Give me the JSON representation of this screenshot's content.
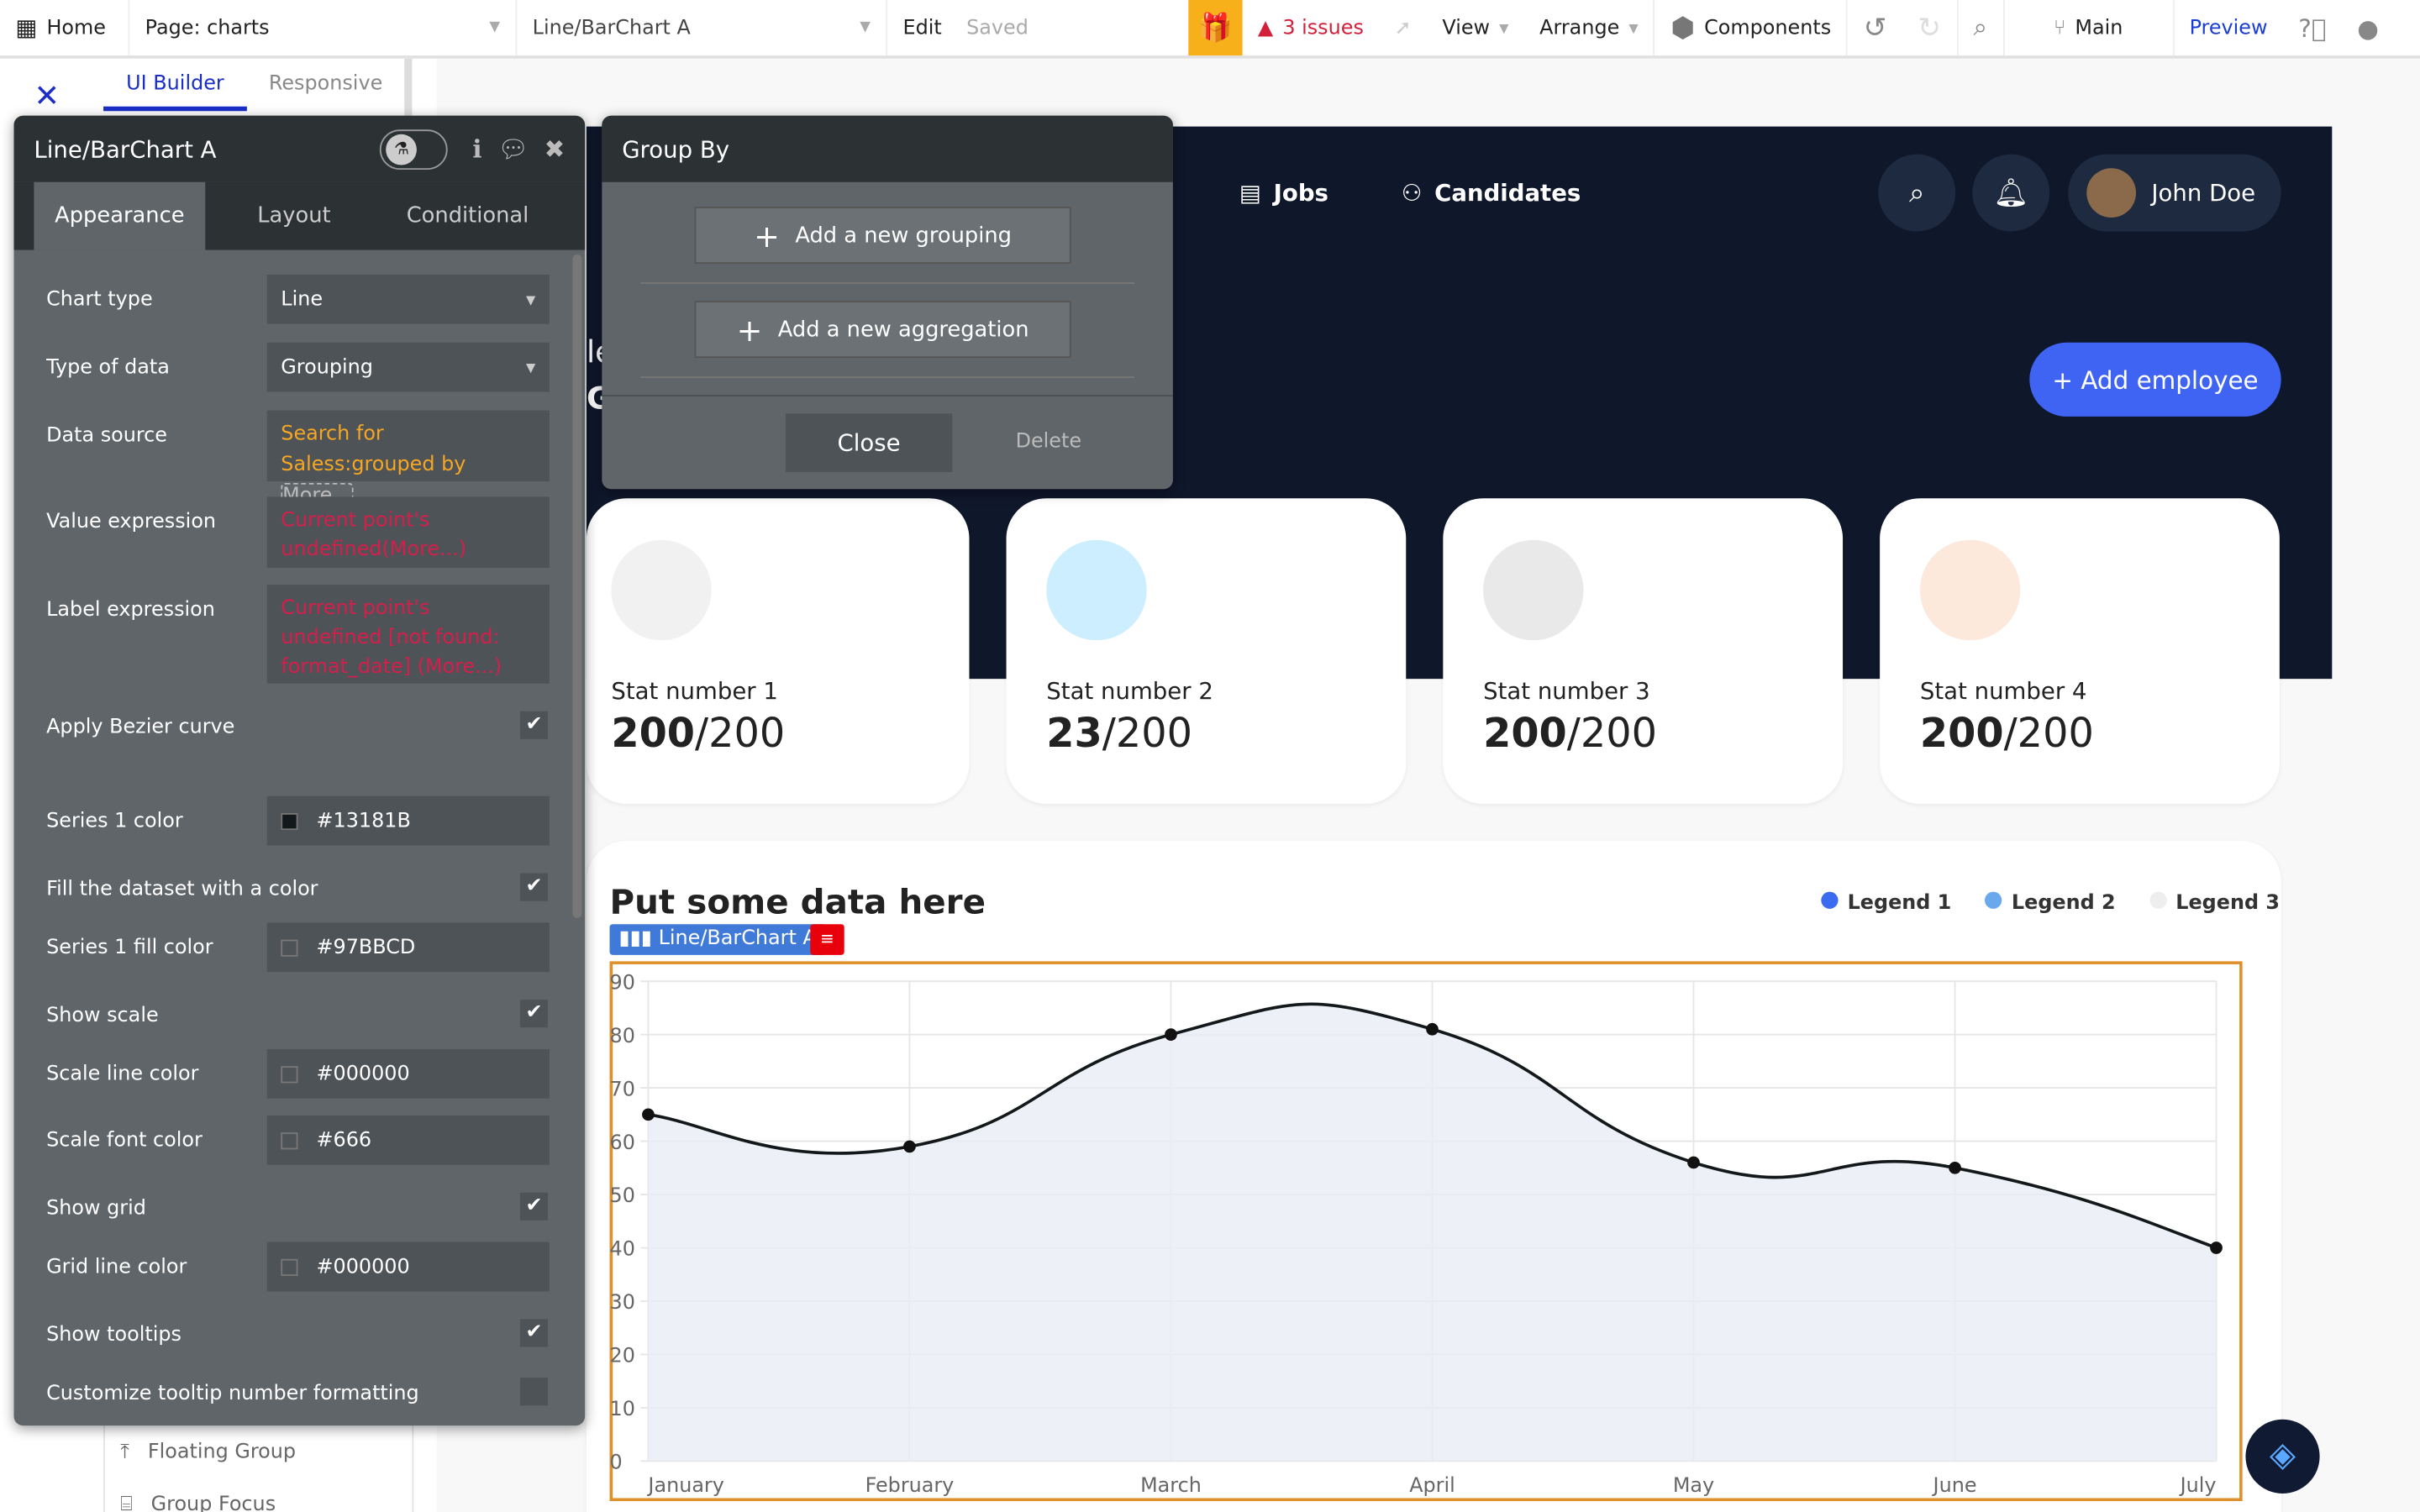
{
  "topbar": {
    "home": "Home",
    "page": "Page: charts",
    "element": "Line/BarChart A",
    "edit": "Edit",
    "saved": "Saved",
    "issues": "3 issues",
    "view": "View",
    "arrange": "Arrange",
    "components": "Components",
    "branch": "Main",
    "preview": "Preview"
  },
  "left_tabs": {
    "ui_builder": "UI Builder",
    "responsive": "Responsive"
  },
  "element_list": [
    "Floating Group",
    "Group Focus"
  ],
  "property_panel": {
    "title": "Line/BarChart A",
    "tabs": [
      "Appearance",
      "Layout",
      "Conditional"
    ],
    "rows": {
      "chart_type": {
        "label": "Chart type",
        "value": "Line"
      },
      "type_of_data": {
        "label": "Type of data",
        "value": "Grouping"
      },
      "data_source": {
        "label": "Data source",
        "value": "Search for Saless:grouped by",
        "more": "More..."
      },
      "value_expression": {
        "label": "Value expression",
        "value": "Current point's undefined(More...)"
      },
      "label_expression": {
        "label": "Label expression",
        "value": "Current point's undefined [not found: format_date] (More...)"
      },
      "bezier": {
        "label": "Apply Bezier curve",
        "checked": true
      },
      "series1_color": {
        "label": "Series 1 color",
        "value": "#13181B"
      },
      "fill_dataset": {
        "label": "Fill the dataset with a color",
        "checked": true
      },
      "series1_fill": {
        "label": "Series 1 fill color",
        "value": "#97BBCD"
      },
      "show_scale": {
        "label": "Show scale",
        "checked": true
      },
      "scale_line_color": {
        "label": "Scale line color",
        "value": "#000000"
      },
      "scale_font_color": {
        "label": "Scale font color",
        "value": "#666"
      },
      "show_grid": {
        "label": "Show grid",
        "checked": true
      },
      "grid_line_color": {
        "label": "Grid line color",
        "value": "#000000"
      },
      "show_tooltips": {
        "label": "Show tooltips",
        "checked": true
      },
      "tooltip_format": {
        "label": "Customize tooltip number formatting",
        "checked": false
      }
    }
  },
  "group_by": {
    "title": "Group By",
    "add_grouping": "Add a new grouping",
    "add_aggregation": "Add a new aggregation",
    "close": "Close",
    "delete": "Delete"
  },
  "app": {
    "nav": [
      "Jobs",
      "Candidates"
    ],
    "user": "John Doe",
    "add_employee": "+ Add employee",
    "partial_text": [
      "le",
      "G"
    ],
    "stats": [
      {
        "label": "Stat number 1",
        "value": "200",
        "total": "/200",
        "color": "#f1f1f1"
      },
      {
        "label": "Stat number 2",
        "value": "23",
        "total": "/200",
        "color": "#cdeefe"
      },
      {
        "label": "Stat number 3",
        "value": "200",
        "total": "/200",
        "color": "#e9e9e9"
      },
      {
        "label": "Stat number 4",
        "value": "200",
        "total": "/200",
        "color": "#fde8dc"
      }
    ],
    "chart_title": "Put some data here",
    "chart_tag": "Line/BarChart A",
    "legends": [
      {
        "name": "Legend 1",
        "color": "#3b6cf0"
      },
      {
        "name": "Legend 2",
        "color": "#6aa8ee"
      },
      {
        "name": "Legend 3",
        "color": "#eeeeee"
      }
    ]
  },
  "chart_data": {
    "type": "line",
    "categories": [
      "January",
      "February",
      "March",
      "April",
      "May",
      "June",
      "July"
    ],
    "values": [
      65,
      59,
      80,
      81,
      56,
      55,
      40
    ],
    "ylim": [
      0,
      90
    ],
    "yticks": [
      "0",
      "10",
      "20",
      "30",
      "40",
      "50",
      "60",
      "70",
      "80",
      "90"
    ],
    "grid": true,
    "bezier": true,
    "fill": true,
    "line_color": "#13181B",
    "fill_color": "#e9eef5"
  }
}
